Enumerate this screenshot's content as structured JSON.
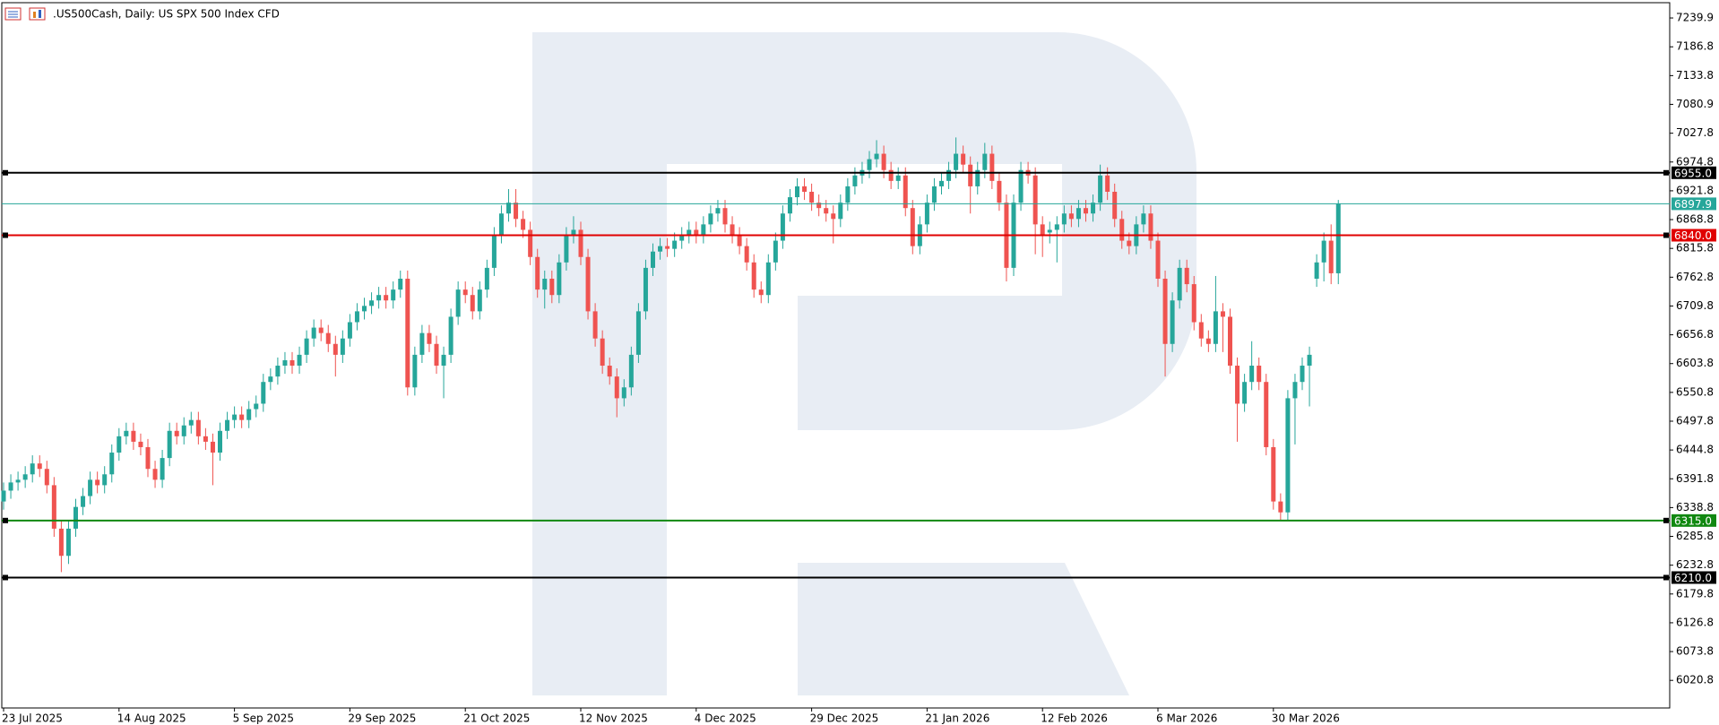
{
  "chart_data": {
    "type": "candlestick",
    "title": ".US500Cash, Daily:  US SPX 500 Index CFD",
    "up_color": "#26a69a",
    "down_color": "#ef5350",
    "ylim": [
      5970,
      7268
    ],
    "yticks": [
      7239.9,
      7186.8,
      7133.8,
      7080.9,
      7027.8,
      6974.8,
      6921.8,
      6868.8,
      6815.8,
      6762.8,
      6709.8,
      6656.8,
      6603.8,
      6550.8,
      6497.8,
      6444.8,
      6391.8,
      6338.8,
      6285.8,
      6232.8,
      6179.8,
      6126.8,
      6073.8,
      6020.8
    ],
    "levels": [
      {
        "value": 6955,
        "label": "6955.0",
        "color": "#000000"
      },
      {
        "value": 6897.9,
        "color": "#26a69a"
      },
      {
        "value": 6840,
        "label": "6840.0",
        "color": "#e00000"
      },
      {
        "value": 6315,
        "label": "6315.0",
        "color": "#118811"
      },
      {
        "value": 6210,
        "label": "6210.0",
        "color": "#000000"
      }
    ],
    "categories": [
      "23 Jul 2025",
      null,
      null,
      null,
      null,
      null,
      null,
      null,
      null,
      null,
      null,
      null,
      null,
      null,
      null,
      null,
      "14 Aug 2025",
      null,
      null,
      null,
      null,
      null,
      null,
      null,
      null,
      null,
      null,
      null,
      null,
      null,
      null,
      null,
      "5 Sep 2025",
      null,
      null,
      null,
      null,
      null,
      null,
      null,
      null,
      null,
      null,
      null,
      null,
      null,
      null,
      null,
      "29 Sep 2025",
      null,
      null,
      null,
      null,
      null,
      null,
      null,
      null,
      null,
      null,
      null,
      null,
      null,
      null,
      null,
      "21 Oct 2025",
      null,
      null,
      null,
      null,
      null,
      null,
      null,
      null,
      null,
      null,
      null,
      null,
      null,
      null,
      null,
      "12 Nov 2025",
      null,
      null,
      null,
      null,
      null,
      null,
      null,
      null,
      null,
      null,
      null,
      null,
      null,
      null,
      null,
      "4 Dec 2025",
      null,
      null,
      null,
      null,
      null,
      null,
      null,
      null,
      null,
      null,
      null,
      null,
      null,
      null,
      null,
      "29 Dec 2025",
      null,
      null,
      null,
      null,
      null,
      null,
      null,
      null,
      null,
      null,
      null,
      null,
      null,
      null,
      null,
      "21 Jan 2026",
      null,
      null,
      null,
      null,
      null,
      null,
      null,
      null,
      null,
      null,
      null,
      null,
      null,
      null,
      null,
      "12 Feb 2026",
      null,
      null,
      null,
      null,
      null,
      null,
      null,
      null,
      null,
      null,
      null,
      null,
      null,
      null,
      null,
      "6 Mar 2026",
      null,
      null,
      null,
      null,
      null,
      null,
      null,
      null,
      null,
      null,
      null,
      null,
      null,
      null,
      null,
      "30 Mar 2026",
      null,
      null,
      null,
      null,
      null,
      null,
      null,
      null,
      null
    ],
    "ohlc": [
      [
        6350,
        6385,
        6335,
        6370
      ],
      [
        6370,
        6400,
        6355,
        6385
      ],
      [
        6385,
        6405,
        6370,
        6390
      ],
      [
        6390,
        6415,
        6375,
        6400
      ],
      [
        6400,
        6435,
        6385,
        6420
      ],
      [
        6420,
        6435,
        6395,
        6410
      ],
      [
        6410,
        6425,
        6365,
        6380
      ],
      [
        6380,
        6395,
        6285,
        6300
      ],
      [
        6300,
        6315,
        6220,
        6250
      ],
      [
        6250,
        6315,
        6235,
        6300
      ],
      [
        6300,
        6355,
        6285,
        6340
      ],
      [
        6340,
        6375,
        6325,
        6360
      ],
      [
        6360,
        6405,
        6345,
        6390
      ],
      [
        6390,
        6405,
        6365,
        6380
      ],
      [
        6380,
        6415,
        6365,
        6400
      ],
      [
        6400,
        6455,
        6385,
        6440
      ],
      [
        6440,
        6485,
        6425,
        6470
      ],
      [
        6470,
        6495,
        6455,
        6480
      ],
      [
        6480,
        6495,
        6445,
        6460
      ],
      [
        6460,
        6475,
        6435,
        6450
      ],
      [
        6450,
        6465,
        6395,
        6410
      ],
      [
        6410,
        6425,
        6375,
        6390
      ],
      [
        6390,
        6445,
        6375,
        6430
      ],
      [
        6430,
        6495,
        6415,
        6480
      ],
      [
        6480,
        6495,
        6455,
        6470
      ],
      [
        6470,
        6505,
        6455,
        6490
      ],
      [
        6490,
        6515,
        6475,
        6500
      ],
      [
        6500,
        6515,
        6455,
        6470
      ],
      [
        6470,
        6485,
        6445,
        6460
      ],
      [
        6460,
        6475,
        6380,
        6440
      ],
      [
        6440,
        6495,
        6425,
        6480
      ],
      [
        6480,
        6515,
        6465,
        6500
      ],
      [
        6500,
        6525,
        6485,
        6510
      ],
      [
        6510,
        6525,
        6485,
        6500
      ],
      [
        6500,
        6535,
        6485,
        6520
      ],
      [
        6520,
        6545,
        6505,
        6530
      ],
      [
        6530,
        6585,
        6515,
        6570
      ],
      [
        6570,
        6595,
        6555,
        6580
      ],
      [
        6580,
        6615,
        6565,
        6600
      ],
      [
        6600,
        6625,
        6585,
        6610
      ],
      [
        6610,
        6625,
        6585,
        6600
      ],
      [
        6600,
        6635,
        6585,
        6620
      ],
      [
        6620,
        6665,
        6605,
        6650
      ],
      [
        6650,
        6685,
        6635,
        6670
      ],
      [
        6670,
        6685,
        6645,
        6660
      ],
      [
        6660,
        6675,
        6625,
        6640
      ],
      [
        6640,
        6655,
        6580,
        6620
      ],
      [
        6620,
        6665,
        6605,
        6650
      ],
      [
        6650,
        6695,
        6635,
        6680
      ],
      [
        6680,
        6715,
        6665,
        6700
      ],
      [
        6700,
        6725,
        6685,
        6710
      ],
      [
        6710,
        6735,
        6695,
        6720
      ],
      [
        6720,
        6745,
        6705,
        6730
      ],
      [
        6730,
        6745,
        6705,
        6720
      ],
      [
        6720,
        6755,
        6705,
        6740
      ],
      [
        6740,
        6775,
        6725,
        6760
      ],
      [
        6760,
        6775,
        6545,
        6560
      ],
      [
        6560,
        6635,
        6545,
        6620
      ],
      [
        6620,
        6675,
        6605,
        6660
      ],
      [
        6660,
        6675,
        6625,
        6640
      ],
      [
        6640,
        6655,
        6585,
        6600
      ],
      [
        6600,
        6635,
        6540,
        6620
      ],
      [
        6620,
        6705,
        6605,
        6690
      ],
      [
        6690,
        6755,
        6675,
        6740
      ],
      [
        6740,
        6755,
        6715,
        6730
      ],
      [
        6730,
        6745,
        6685,
        6700
      ],
      [
        6700,
        6755,
        6685,
        6740
      ],
      [
        6740,
        6795,
        6725,
        6780
      ],
      [
        6780,
        6855,
        6765,
        6840
      ],
      [
        6840,
        6895,
        6825,
        6880
      ],
      [
        6880,
        6925,
        6865,
        6900
      ],
      [
        6900,
        6925,
        6855,
        6870
      ],
      [
        6870,
        6885,
        6835,
        6850
      ],
      [
        6850,
        6865,
        6785,
        6800
      ],
      [
        6800,
        6815,
        6725,
        6740
      ],
      [
        6740,
        6775,
        6705,
        6760
      ],
      [
        6760,
        6775,
        6715,
        6730
      ],
      [
        6730,
        6805,
        6715,
        6790
      ],
      [
        6790,
        6855,
        6775,
        6840
      ],
      [
        6840,
        6875,
        6825,
        6850
      ],
      [
        6850,
        6865,
        6785,
        6800
      ],
      [
        6800,
        6815,
        6685,
        6700
      ],
      [
        6700,
        6715,
        6635,
        6650
      ],
      [
        6650,
        6665,
        6585,
        6600
      ],
      [
        6600,
        6615,
        6565,
        6580
      ],
      [
        6580,
        6595,
        6505,
        6540
      ],
      [
        6540,
        6575,
        6525,
        6560
      ],
      [
        6560,
        6635,
        6545,
        6620
      ],
      [
        6620,
        6715,
        6605,
        6700
      ],
      [
        6700,
        6795,
        6685,
        6780
      ],
      [
        6780,
        6825,
        6765,
        6810
      ],
      [
        6810,
        6835,
        6795,
        6820
      ],
      [
        6820,
        6835,
        6800,
        6815
      ],
      [
        6815,
        6845,
        6800,
        6830
      ],
      [
        6830,
        6855,
        6815,
        6840
      ],
      [
        6840,
        6865,
        6825,
        6850
      ],
      [
        6850,
        6865,
        6825,
        6840
      ],
      [
        6840,
        6875,
        6825,
        6860
      ],
      [
        6860,
        6895,
        6845,
        6880
      ],
      [
        6880,
        6905,
        6865,
        6890
      ],
      [
        6890,
        6905,
        6845,
        6860
      ],
      [
        6860,
        6875,
        6825,
        6840
      ],
      [
        6840,
        6855,
        6805,
        6820
      ],
      [
        6820,
        6835,
        6775,
        6790
      ],
      [
        6790,
        6805,
        6725,
        6740
      ],
      [
        6740,
        6755,
        6715,
        6730
      ],
      [
        6730,
        6805,
        6715,
        6790
      ],
      [
        6790,
        6845,
        6775,
        6830
      ],
      [
        6830,
        6895,
        6815,
        6880
      ],
      [
        6880,
        6925,
        6865,
        6910
      ],
      [
        6910,
        6945,
        6895,
        6930
      ],
      [
        6930,
        6945,
        6905,
        6920
      ],
      [
        6920,
        6935,
        6885,
        6900
      ],
      [
        6900,
        6915,
        6875,
        6890
      ],
      [
        6890,
        6905,
        6865,
        6880
      ],
      [
        6880,
        6895,
        6825,
        6870
      ],
      [
        6870,
        6915,
        6855,
        6900
      ],
      [
        6900,
        6945,
        6885,
        6930
      ],
      [
        6930,
        6965,
        6915,
        6950
      ],
      [
        6950,
        6975,
        6935,
        6960
      ],
      [
        6960,
        6995,
        6945,
        6980
      ],
      [
        6980,
        7015,
        6965,
        6990
      ],
      [
        6990,
        7005,
        6945,
        6960
      ],
      [
        6960,
        6975,
        6925,
        6940
      ],
      [
        6940,
        6965,
        6925,
        6950
      ],
      [
        6950,
        6965,
        6875,
        6890
      ],
      [
        6890,
        6905,
        6805,
        6820
      ],
      [
        6820,
        6875,
        6805,
        6860
      ],
      [
        6860,
        6915,
        6845,
        6900
      ],
      [
        6900,
        6945,
        6885,
        6930
      ],
      [
        6930,
        6955,
        6915,
        6940
      ],
      [
        6940,
        6975,
        6925,
        6960
      ],
      [
        6960,
        7020,
        6945,
        6990
      ],
      [
        6990,
        7005,
        6955,
        6970
      ],
      [
        6970,
        6985,
        6880,
        6930
      ],
      [
        6930,
        6975,
        6915,
        6960
      ],
      [
        6960,
        7010,
        6945,
        6990
      ],
      [
        6990,
        7005,
        6925,
        6940
      ],
      [
        6940,
        6955,
        6885,
        6900
      ],
      [
        6900,
        6915,
        6755,
        6780
      ],
      [
        6780,
        6915,
        6765,
        6900
      ],
      [
        6900,
        6975,
        6885,
        6960
      ],
      [
        6960,
        6975,
        6935,
        6950
      ],
      [
        6950,
        6965,
        6805,
        6860
      ],
      [
        6860,
        6875,
        6800,
        6840
      ],
      [
        6845,
        6865,
        6825,
        6850
      ],
      [
        6850,
        6875,
        6790,
        6860
      ],
      [
        6860,
        6895,
        6845,
        6880
      ],
      [
        6880,
        6895,
        6855,
        6870
      ],
      [
        6870,
        6905,
        6855,
        6890
      ],
      [
        6890,
        6905,
        6865,
        6880
      ],
      [
        6880,
        6915,
        6865,
        6900
      ],
      [
        6900,
        6970,
        6885,
        6950
      ],
      [
        6950,
        6965,
        6905,
        6920
      ],
      [
        6920,
        6935,
        6855,
        6870
      ],
      [
        6870,
        6885,
        6815,
        6830
      ],
      [
        6830,
        6845,
        6805,
        6820
      ],
      [
        6820,
        6875,
        6805,
        6860
      ],
      [
        6860,
        6895,
        6845,
        6880
      ],
      [
        6880,
        6895,
        6815,
        6830
      ],
      [
        6830,
        6845,
        6745,
        6760
      ],
      [
        6760,
        6775,
        6580,
        6640
      ],
      [
        6640,
        6735,
        6625,
        6720
      ],
      [
        6720,
        6795,
        6705,
        6780
      ],
      [
        6780,
        6795,
        6735,
        6750
      ],
      [
        6750,
        6765,
        6665,
        6680
      ],
      [
        6680,
        6695,
        6635,
        6650
      ],
      [
        6650,
        6665,
        6625,
        6640
      ],
      [
        6640,
        6765,
        6625,
        6700
      ],
      [
        6700,
        6715,
        6625,
        6690
      ],
      [
        6690,
        6705,
        6585,
        6600
      ],
      [
        6600,
        6615,
        6460,
        6530
      ],
      [
        6530,
        6585,
        6515,
        6570
      ],
      [
        6570,
        6645,
        6555,
        6600
      ],
      [
        6600,
        6615,
        6555,
        6570
      ],
      [
        6570,
        6585,
        6435,
        6450
      ],
      [
        6450,
        6465,
        6335,
        6350
      ],
      [
        6350,
        6365,
        6315,
        6330
      ],
      [
        6330,
        6555,
        6315,
        6540
      ],
      [
        6540,
        6585,
        6455,
        6570
      ],
      [
        6570,
        6615,
        6555,
        6600
      ],
      [
        6600,
        6635,
        6525,
        6620
      ],
      [
        6760,
        6805,
        6745,
        6790
      ],
      [
        6790,
        6845,
        6755,
        6830
      ],
      [
        6830,
        6860,
        6750,
        6770
      ],
      [
        6770,
        6905,
        6750,
        6897.9
      ]
    ]
  }
}
